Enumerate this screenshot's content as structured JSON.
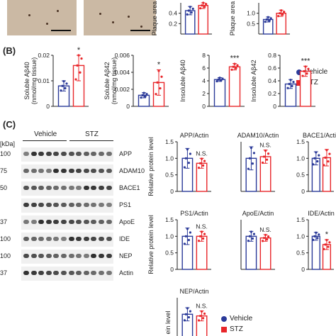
{
  "panel_labels": {
    "b": "(B)",
    "c": "(C)"
  },
  "legend": {
    "vehicle": "Vehicle",
    "stz": "STZ"
  },
  "colors": {
    "vehicle": "#2b3a99",
    "stz": "#e8262a",
    "axis": "#222222"
  },
  "blot": {
    "group_vehicle": "Vehicle",
    "group_stz": "STZ",
    "kda_header": "[kDa]",
    "rows": [
      {
        "label": "APP",
        "kda": "100"
      },
      {
        "label": "ADAM10",
        "kda": "75"
      },
      {
        "label": "BACE1",
        "kda": "50"
      },
      {
        "label": "PS1",
        "kda": ""
      },
      {
        "label": "ApoE",
        "kda": "37"
      },
      {
        "label": "IDE",
        "kda": "100"
      },
      {
        "label": "NEP",
        "kda": "100"
      },
      {
        "label": "Actin",
        "kda": "37"
      }
    ]
  },
  "chart_data": [
    {
      "id": "plaque1",
      "type": "bar",
      "categories": [
        "Vehicle",
        "STZ"
      ],
      "values": [
        0.45,
        0.55
      ],
      "errors": [
        0.08,
        0.06
      ],
      "ylabel": "Plaque area",
      "ylim": [
        0,
        0.6
      ],
      "ticks": [
        "0.4",
        "0.2"
      ],
      "sig": ""
    },
    {
      "id": "plaque2",
      "type": "bar",
      "categories": [
        "Vehicle",
        "STZ"
      ],
      "values": [
        0.7,
        1.0
      ],
      "errors": [
        0.12,
        0.15
      ],
      "ylabel": "Plaque area",
      "ylim": [
        0,
        1.5
      ],
      "ticks": [
        "1.0",
        "0.5"
      ],
      "sig": ""
    },
    {
      "id": "sol40",
      "type": "bar",
      "categories": [
        "Vehicle",
        "STZ"
      ],
      "values": [
        0.008,
        0.016
      ],
      "errors": [
        0.002,
        0.006
      ],
      "ylabel": "Soluble Aβ40",
      "ylabel2": "(nmol/mg tissue)",
      "ylim": [
        0,
        0.02
      ],
      "ticks": [
        "0",
        "0.01",
        "0.02"
      ],
      "sig": "*"
    },
    {
      "id": "sol42",
      "type": "bar",
      "categories": [
        "Vehicle",
        "STZ"
      ],
      "values": [
        0.0013,
        0.0028
      ],
      "errors": [
        0.0003,
        0.0015
      ],
      "ylabel": "Soluble Aβ42",
      "ylabel2": "(nmol/mg tissue)",
      "ylim": [
        0,
        0.006
      ],
      "ticks": [
        "0",
        "0.002",
        "0.004",
        "0.006"
      ],
      "sig": "*"
    },
    {
      "id": "insol40",
      "type": "bar",
      "categories": [
        "Vehicle",
        "STZ"
      ],
      "values": [
        4.2,
        6.2
      ],
      "errors": [
        0.3,
        0.5
      ],
      "ylabel": "Insoluble Aβ40",
      "ylim": [
        0,
        8
      ],
      "ticks": [
        "0",
        "2",
        "4",
        "6",
        "8"
      ],
      "sig": "***"
    },
    {
      "id": "insol42",
      "type": "bar",
      "categories": [
        "Vehicle",
        "STZ"
      ],
      "values": [
        0.35,
        0.55
      ],
      "errors": [
        0.07,
        0.08
      ],
      "ylabel": "Insoluble Aβ42",
      "ylim": [
        0,
        0.8
      ],
      "ticks": [
        "0",
        "0.2",
        "0.4",
        "0.6",
        "0.8"
      ],
      "sig": "***"
    },
    {
      "id": "app",
      "type": "bar",
      "title": "APP/Actin",
      "categories": [
        "Vehicle",
        "STZ"
      ],
      "values": [
        1.0,
        0.85
      ],
      "errors": [
        0.3,
        0.15
      ],
      "ylabel": "Relative protein level",
      "ylim": [
        0,
        1.5
      ],
      "ticks": [
        "0",
        "0.5",
        "1.0",
        "1.5"
      ],
      "sig": "N.S."
    },
    {
      "id": "adam10",
      "type": "bar",
      "title": "ADAM10/Actin",
      "categories": [
        "Vehicle",
        "STZ"
      ],
      "values": [
        1.0,
        1.05
      ],
      "errors": [
        0.35,
        0.2
      ],
      "ylabel": "",
      "ylim": [
        0,
        1.5
      ],
      "ticks": [],
      "sig": "N.S."
    },
    {
      "id": "bace1",
      "type": "bar",
      "title": "BACE1/Actin",
      "categories": [
        "Vehicle",
        "STZ"
      ],
      "values": [
        1.0,
        1.02
      ],
      "errors": [
        0.2,
        0.25
      ],
      "ylabel": "",
      "ylim": [
        0,
        1.5
      ],
      "ticks": [
        "0",
        "0.5",
        "1.0",
        "1.5"
      ],
      "sig": ""
    },
    {
      "id": "ps1",
      "type": "bar",
      "title": "PS1/Actin",
      "categories": [
        "Vehicle",
        "STZ"
      ],
      "values": [
        1.0,
        1.0
      ],
      "errors": [
        0.25,
        0.15
      ],
      "ylabel": "Relative protein level",
      "ylim": [
        0,
        1.5
      ],
      "ticks": [
        "0",
        "0.5",
        "1.0",
        "1.5"
      ],
      "sig": "N.S."
    },
    {
      "id": "apoe",
      "type": "bar",
      "title": "ApoE/Actin",
      "categories": [
        "Vehicle",
        "STZ"
      ],
      "values": [
        1.0,
        0.95
      ],
      "errors": [
        0.15,
        0.1
      ],
      "ylabel": "",
      "ylim": [
        0,
        1.5
      ],
      "ticks": [],
      "sig": "N.S."
    },
    {
      "id": "ide",
      "type": "bar",
      "title": "IDE/Actin",
      "categories": [
        "Vehicle",
        "STZ"
      ],
      "values": [
        1.0,
        0.75
      ],
      "errors": [
        0.12,
        0.15
      ],
      "ylabel": "",
      "ylim": [
        0,
        1.5
      ],
      "ticks": [
        "0",
        "0.5",
        "1.0",
        "1.5"
      ],
      "sig": "*"
    },
    {
      "id": "nep",
      "type": "bar",
      "title": "NEP/Actin",
      "categories": [
        "Vehicle",
        "STZ"
      ],
      "values": [
        1.0,
        0.95
      ],
      "errors": [
        0.2,
        0.15
      ],
      "ylabel": "ein level",
      "ylim": [
        0,
        1.5
      ],
      "ticks": [],
      "sig": "N.S."
    }
  ]
}
